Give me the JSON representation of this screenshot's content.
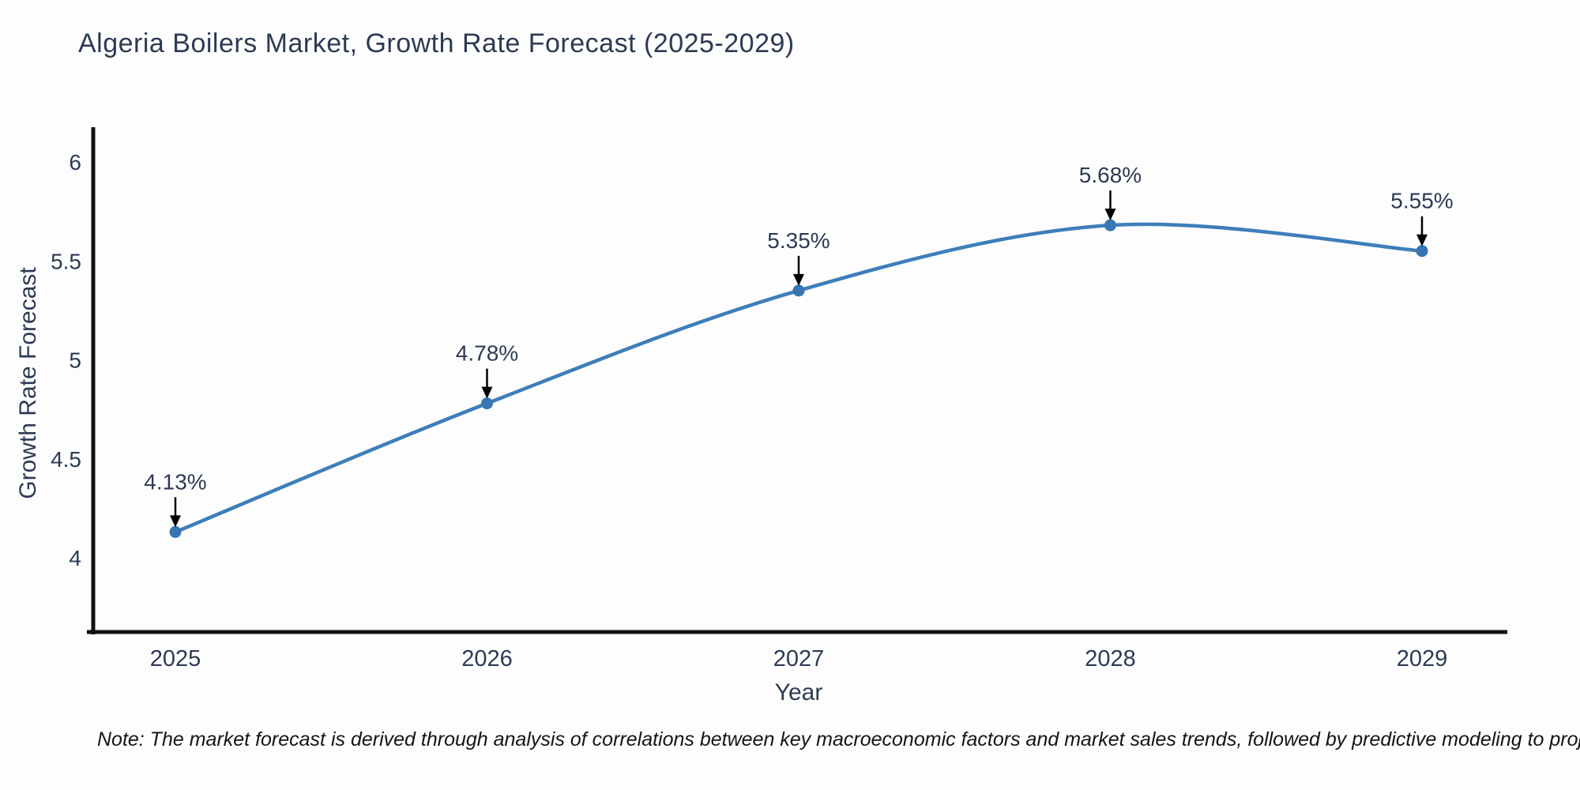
{
  "chart_data": {
    "type": "line",
    "title": "Algeria Boilers Market, Growth Rate Forecast (2025-2029)",
    "xlabel": "Year",
    "ylabel": "Growth Rate Forecast",
    "x": [
      2025,
      2026,
      2027,
      2028,
      2029
    ],
    "values": [
      4.13,
      4.78,
      5.35,
      5.68,
      5.55
    ],
    "point_labels": [
      "4.13%",
      "4.78%",
      "5.35%",
      "5.68%",
      "5.55%"
    ],
    "xtick_labels": [
      "2025",
      "2026",
      "2027",
      "2028",
      "2029"
    ],
    "yticks": [
      4,
      4.5,
      5,
      5.5,
      6
    ],
    "ytick_labels": [
      "4",
      "4.5",
      "5",
      "5.5",
      "6"
    ],
    "ylim": [
      3.62,
      6.18
    ],
    "grid": false,
    "legend": null,
    "line_color": "#3d7eba",
    "marker_color": "#3776b2",
    "arrow_color": "#000000",
    "axis_color": "#111111",
    "text_color": "#2d3a54"
  },
  "note": {
    "text": "Note: The market forecast is derived through analysis of correlations between key macroeconomic factors and market sales trends, followed by predictive modeling to project future sales"
  }
}
